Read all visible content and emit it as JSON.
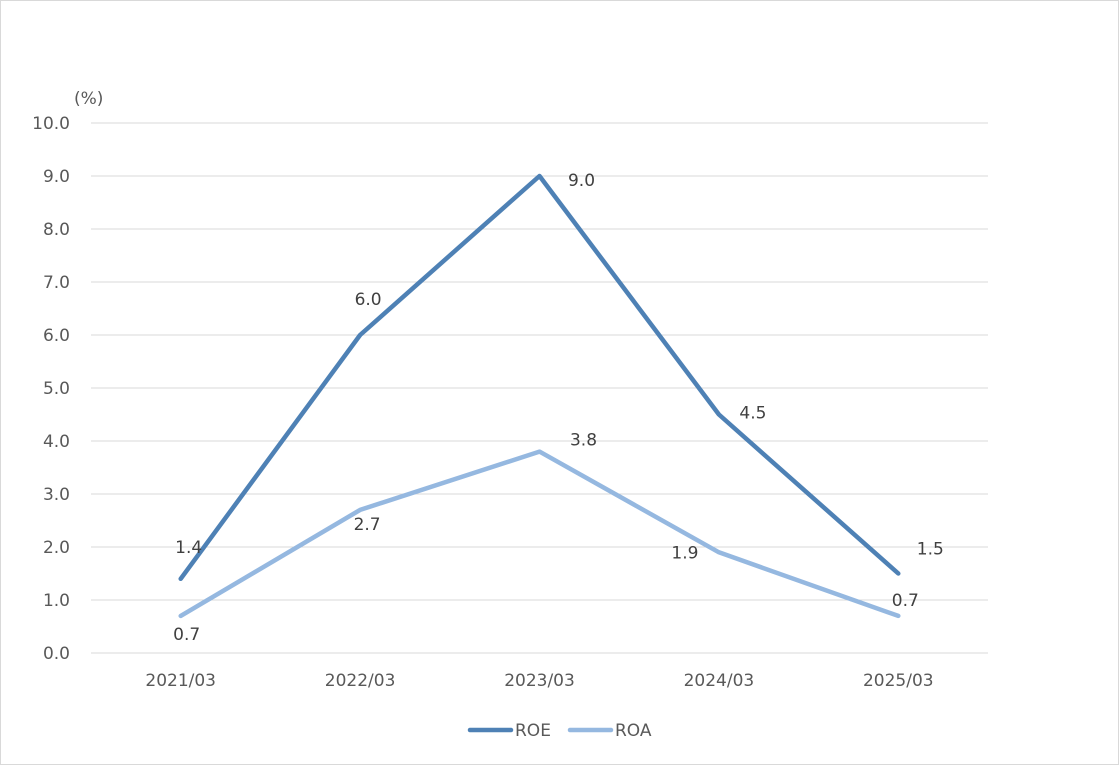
{
  "chart_data": {
    "type": "line",
    "unit_label": "(%)",
    "categories": [
      "2021/03",
      "2022/03",
      "2023/03",
      "2024/03",
      "2025/03"
    ],
    "ylim": [
      0,
      10
    ],
    "y_ticks": [
      "0.0",
      "1.0",
      "2.0",
      "3.0",
      "4.0",
      "5.0",
      "6.0",
      "7.0",
      "8.0",
      "9.0",
      "10.0"
    ],
    "grid": true,
    "legend_position": "bottom",
    "series": [
      {
        "name": "ROE",
        "color": "#4e81b5",
        "values": [
          1.4,
          6.0,
          9.0,
          4.5,
          1.5
        ],
        "labels": [
          "1.4",
          "6.0",
          "9.0",
          "4.5",
          "1.5"
        ]
      },
      {
        "name": "ROA",
        "color": "#95b8e0",
        "values": [
          0.7,
          2.7,
          3.8,
          1.9,
          0.7
        ],
        "labels": [
          "0.7",
          "2.7",
          "3.8",
          "1.9",
          "0.7"
        ]
      }
    ]
  }
}
